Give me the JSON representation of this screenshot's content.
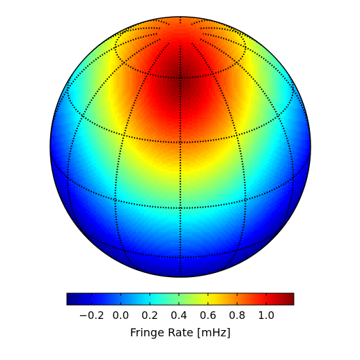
{
  "chart_data": {
    "type": "heatmap",
    "projection": "orthographic",
    "colormap": "jet",
    "colorbar": {
      "label": "Fringe Rate [mHz]",
      "range": [
        -0.37,
        1.19
      ],
      "ticks": [
        -0.2,
        0.0,
        0.2,
        0.4,
        0.6,
        0.8,
        1.0
      ],
      "tick_labels": [
        "−0.2",
        "0.0",
        "0.2",
        "0.4",
        "0.6",
        "0.8",
        "1.0"
      ],
      "orientation": "horizontal",
      "placement": "bottom"
    },
    "field": {
      "max_value": 1.19,
      "min_value": -0.37,
      "max_location": "upper-center",
      "min_location": "bottom-rim"
    },
    "grid": true,
    "meridians": [
      -60,
      -30,
      0,
      30,
      60,
      90,
      120,
      150,
      180,
      210,
      240,
      270
    ],
    "parallels": [
      -60,
      -30,
      0,
      30,
      60
    ]
  }
}
